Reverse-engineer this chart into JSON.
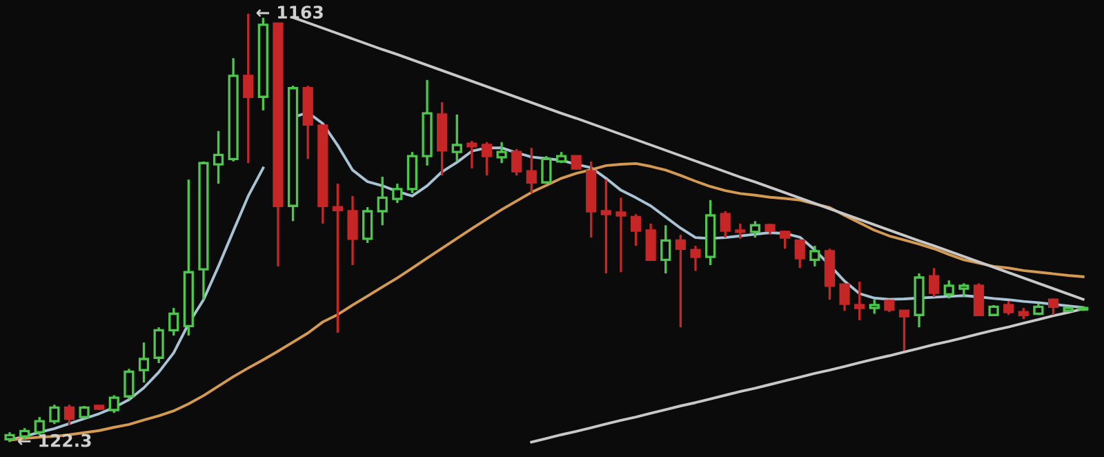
{
  "chart_data": {
    "type": "candlestick",
    "categories": [
      null,
      null,
      null,
      null,
      null,
      null,
      null,
      null,
      null,
      null,
      null,
      null,
      null,
      null,
      null,
      null,
      null,
      null,
      null,
      null,
      null,
      null,
      null,
      null,
      null,
      null,
      null,
      null,
      null,
      null,
      null,
      null,
      null,
      null,
      null,
      null,
      null,
      null,
      null,
      null,
      null,
      null,
      null,
      null,
      null,
      null,
      null,
      null,
      null,
      null,
      null,
      null,
      null,
      null,
      null,
      null,
      null,
      null,
      null,
      null,
      null,
      null,
      null,
      null,
      null,
      null,
      null,
      null,
      null,
      null,
      null,
      null,
      null
    ],
    "ohlc": [
      [
        129,
        146,
        122.3,
        139
      ],
      [
        136,
        156,
        129,
        149
      ],
      [
        146,
        183,
        139,
        173
      ],
      [
        173,
        213,
        166,
        206
      ],
      [
        206,
        213,
        163,
        179
      ],
      [
        183,
        210,
        179,
        206
      ],
      [
        210,
        210,
        200,
        203
      ],
      [
        200,
        236,
        193,
        230
      ],
      [
        233,
        300,
        226,
        293
      ],
      [
        297,
        364,
        267,
        324
      ],
      [
        327,
        401,
        314,
        394
      ],
      [
        394,
        448,
        381,
        434
      ],
      [
        404,
        760,
        381,
        535
      ],
      [
        542,
        804,
        468,
        800
      ],
      [
        797,
        878,
        750,
        820
      ],
      [
        810,
        1055,
        804,
        1012
      ],
      [
        1012,
        1163,
        800,
        961
      ],
      [
        961,
        1153,
        928,
        1136
      ],
      [
        1139,
        1141,
        549,
        696
      ],
      [
        696,
        988,
        659,
        982
      ],
      [
        982,
        988,
        810,
        894
      ],
      [
        891,
        891,
        653,
        696
      ],
      [
        693,
        750,
        388,
        686
      ],
      [
        683,
        720,
        552,
        616
      ],
      [
        616,
        693,
        606,
        683
      ],
      [
        683,
        767,
        649,
        716
      ],
      [
        713,
        750,
        703,
        737
      ],
      [
        737,
        827,
        727,
        817
      ],
      [
        817,
        1002,
        794,
        921
      ],
      [
        918,
        948,
        770,
        831
      ],
      [
        827,
        918,
        804,
        844
      ],
      [
        847,
        854,
        787,
        841
      ],
      [
        844,
        851,
        770,
        817
      ],
      [
        814,
        851,
        800,
        827
      ],
      [
        827,
        834,
        770,
        780
      ],
      [
        780,
        837,
        727,
        753
      ],
      [
        753,
        817,
        750,
        810
      ],
      [
        804,
        827,
        800,
        817
      ],
      [
        817,
        817,
        784,
        787
      ],
      [
        780,
        804,
        619,
        683
      ],
      [
        683,
        760,
        532,
        676
      ],
      [
        680,
        716,
        535,
        673
      ],
      [
        669,
        676,
        599,
        636
      ],
      [
        636,
        653,
        565,
        565
      ],
      [
        565,
        649,
        532,
        612
      ],
      [
        612,
        626,
        401,
        592
      ],
      [
        589,
        599,
        538,
        572
      ],
      [
        572,
        710,
        552,
        673
      ],
      [
        676,
        683,
        619,
        636
      ],
      [
        636,
        653,
        616,
        633
      ],
      [
        633,
        659,
        619,
        649
      ],
      [
        649,
        653,
        626,
        636
      ],
      [
        633,
        636,
        592,
        619
      ],
      [
        612,
        612,
        545,
        569
      ],
      [
        565,
        599,
        549,
        586
      ],
      [
        586,
        592,
        468,
        502
      ],
      [
        505,
        505,
        441,
        458
      ],
      [
        455,
        512,
        418,
        448
      ],
      [
        448,
        468,
        434,
        455
      ],
      [
        465,
        468,
        438,
        444
      ],
      [
        441,
        441,
        344,
        428
      ],
      [
        431,
        532,
        401,
        522
      ],
      [
        525,
        545,
        475,
        485
      ],
      [
        481,
        515,
        471,
        502
      ],
      [
        495,
        508,
        475,
        502
      ],
      [
        502,
        508,
        431,
        431
      ],
      [
        431,
        455,
        428,
        451
      ],
      [
        455,
        465,
        431,
        438
      ],
      [
        438,
        448,
        421,
        431
      ],
      [
        434,
        458,
        431,
        451
      ],
      [
        468,
        471,
        431,
        451
      ],
      [
        441,
        451,
        438,
        448
      ],
      [
        444,
        451,
        441,
        448
      ]
    ],
    "colors": [
      "#4cc84c",
      "#4cc84c",
      "#4cc84c",
      "#4cc84c",
      "#c62626",
      "#4cc84c",
      "#c62626",
      "#4cc84c",
      "#4cc84c",
      "#4cc84c",
      "#4cc84c",
      "#4cc84c",
      "#4cc84c",
      "#4cc84c",
      "#4cc84c",
      "#4cc84c",
      "#c62626",
      "#4cc84c",
      "#c62626",
      "#4cc84c",
      "#c62626",
      "#c62626",
      "#c62626",
      "#c62626",
      "#4cc84c",
      "#4cc84c",
      "#4cc84c",
      "#4cc84c",
      "#4cc84c",
      "#c62626",
      "#4cc84c",
      "#c62626",
      "#c62626",
      "#4cc84c",
      "#c62626",
      "#c62626",
      "#4cc84c",
      "#4cc84c",
      "#c62626",
      "#c62626",
      "#c62626",
      "#c62626",
      "#c62626",
      "#c62626",
      "#4cc84c",
      "#c62626",
      "#c62626",
      "#4cc84c",
      "#c62626",
      "#c62626",
      "#4cc84c",
      "#c62626",
      "#c62626",
      "#c62626",
      "#4cc84c",
      "#c62626",
      "#c62626",
      "#c62626",
      "#4cc84c",
      "#c62626",
      "#c62626",
      "#4cc84c",
      "#c62626",
      "#4cc84c",
      "#4cc84c",
      "#c62626",
      "#4cc84c",
      "#c62626",
      "#c62626",
      "#4cc84c",
      "#c62626",
      "#4cc84c",
      "#4cc84c"
    ],
    "series": [
      {
        "type": "line",
        "color": "#a8c4d4",
        "values": [
          127,
          136,
          146,
          155,
          167,
          179,
          191,
          206,
          225,
          254,
          292,
          339,
          410,
          468,
          549,
          635,
          720,
          788,
          null,
          911,
          923,
          896,
          843,
          783,
          755,
          745,
          731,
          720,
          745,
          779,
          802,
          829,
          837,
          837,
          825,
          815,
          811,
          807,
          797,
          789,
          763,
          734,
          716,
          696,
          669,
          642,
          619,
          617,
          619,
          623,
          627,
          631,
          629,
          620,
          589,
          552,
          513,
          483,
          472,
          469,
          470,
          472,
          474,
          476,
          478,
          475,
          471,
          468,
          464,
          461,
          457,
          453,
          449
        ]
      },
      {
        "type": "line",
        "color": "#d49a52",
        "values": [
          127,
          131,
          134,
          136,
          140,
          145,
          150,
          158,
          165,
          176,
          186,
          198,
          215,
          235,
          258,
          281,
          302,
          322,
          343,
          365,
          387,
          414,
          432,
          455,
          477,
          499,
          521,
          545,
          569,
          593,
          617,
          641,
          664,
          687,
          708,
          729,
          746,
          763,
          775,
          784,
          794,
          797,
          799,
          792,
          783,
          770,
          756,
          743,
          733,
          726,
          722,
          717,
          714,
          710,
          701,
          692,
          673,
          655,
          637,
          623,
          613,
          603,
          592,
          578,
          565,
          557,
          549,
          545,
          539,
          535,
          531,
          527,
          524
        ]
      },
      {
        "type": "line",
        "color": "#c8c8c8",
        "values": [
          null,
          null,
          null,
          null,
          null,
          null,
          null,
          null,
          null,
          null,
          null,
          null,
          null,
          null,
          null,
          null,
          null,
          null,
          null,
          1154,
          1141,
          1128,
          1115,
          1102,
          1089,
          1076,
          1064,
          1051,
          1038,
          1025,
          1012,
          999,
          986,
          973,
          960,
          947,
          934,
          921,
          909,
          896,
          883,
          870,
          857,
          844,
          831,
          818,
          805,
          792,
          779,
          766,
          754,
          741,
          728,
          715,
          702,
          689,
          676,
          663,
          650,
          637,
          624,
          611,
          599,
          586,
          573,
          560,
          547,
          534,
          521,
          508,
          495,
          482,
          469
        ]
      },
      {
        "type": "line",
        "color": "#c8c8c8",
        "values": [
          null,
          null,
          null,
          null,
          null,
          null,
          null,
          null,
          null,
          null,
          null,
          null,
          null,
          null,
          null,
          null,
          null,
          null,
          null,
          null,
          null,
          null,
          null,
          null,
          null,
          null,
          null,
          null,
          null,
          null,
          null,
          null,
          null,
          null,
          null,
          122,
          131,
          140,
          148,
          157,
          166,
          175,
          183,
          192,
          201,
          210,
          218,
          227,
          236,
          245,
          253,
          262,
          271,
          280,
          289,
          297,
          306,
          315,
          324,
          332,
          341,
          350,
          359,
          367,
          376,
          385,
          394,
          402,
          411,
          420,
          429,
          437,
          446
        ]
      }
    ],
    "annotations": [
      {
        "text": "← 1163",
        "y": 1163
      },
      {
        "text": "← 122.3",
        "y": 122.3
      }
    ]
  }
}
